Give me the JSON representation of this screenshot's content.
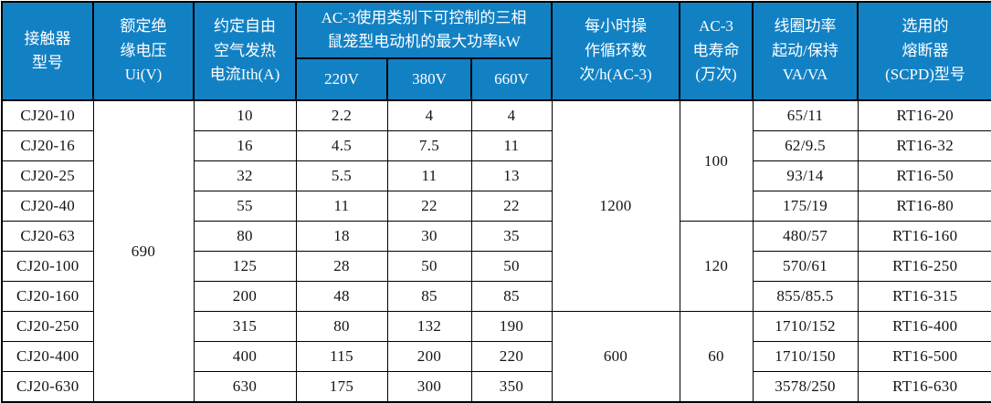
{
  "accent_color": "#1281c4",
  "header_text_color": "#ffffff",
  "body_text_color": "#141414",
  "table": {
    "header": {
      "top": [
        {
          "name": "model",
          "label": "接触器\n型号"
        },
        {
          "name": "insulation-voltage",
          "label": "额定绝\n缘电压\nUi(V)"
        },
        {
          "name": "thermal-current",
          "label": "约定自由\n空气发热\n电流Ith(A)"
        },
        {
          "name": "ac3-max-power-group",
          "label": "AC-3使用类别下可控制的三相\n鼠笼型电动机的最大功率kW",
          "sub": [
            "220V",
            "380V",
            "660V"
          ]
        },
        {
          "name": "cycles-per-hour",
          "label": "每小时操\n作循环数\n次/h(AC-3)"
        },
        {
          "name": "ac3-life",
          "label": "AC-3\n电寿命\n(万次)"
        },
        {
          "name": "coil-power",
          "label": "线圈功率\n起动/保持\nVA/VA"
        },
        {
          "name": "fuse",
          "label": "选用的\n熔断器\n(SCPD)型号"
        }
      ]
    },
    "rows": [
      [
        {
          "v": "CJ20-10"
        },
        {
          "v": "690",
          "rs": 10
        },
        {
          "v": "10"
        },
        {
          "v": "2.2"
        },
        {
          "v": "4"
        },
        {
          "v": "4"
        },
        {
          "v": "1200",
          "rs": 7
        },
        {
          "v": "100",
          "rs": 4
        },
        {
          "v": "65/11"
        },
        {
          "v": "RT16-20"
        }
      ],
      [
        {
          "v": "CJ20-16"
        },
        {
          "v": "16"
        },
        {
          "v": "4.5"
        },
        {
          "v": "7.5"
        },
        {
          "v": "11"
        },
        {
          "v": "62/9.5"
        },
        {
          "v": "RT16-32"
        }
      ],
      [
        {
          "v": "CJ20-25"
        },
        {
          "v": "32"
        },
        {
          "v": "5.5"
        },
        {
          "v": "11"
        },
        {
          "v": "13"
        },
        {
          "v": "93/14"
        },
        {
          "v": "RT16-50"
        }
      ],
      [
        {
          "v": "CJ20-40"
        },
        {
          "v": "55"
        },
        {
          "v": "11"
        },
        {
          "v": "22"
        },
        {
          "v": "22"
        },
        {
          "v": "175/19"
        },
        {
          "v": "RT16-80"
        }
      ],
      [
        {
          "v": "CJ20-63"
        },
        {
          "v": "80"
        },
        {
          "v": "18"
        },
        {
          "v": "30"
        },
        {
          "v": "35"
        },
        {
          "v": "120",
          "rs": 3
        },
        {
          "v": "480/57"
        },
        {
          "v": "RT16-160"
        }
      ],
      [
        {
          "v": "CJ20-100"
        },
        {
          "v": "125"
        },
        {
          "v": "28"
        },
        {
          "v": "50"
        },
        {
          "v": "50"
        },
        {
          "v": "570/61"
        },
        {
          "v": "RT16-250"
        }
      ],
      [
        {
          "v": "CJ20-160"
        },
        {
          "v": "200"
        },
        {
          "v": "48"
        },
        {
          "v": "85"
        },
        {
          "v": "85"
        },
        {
          "v": "855/85.5"
        },
        {
          "v": "RT16-315"
        }
      ],
      [
        {
          "v": "CJ20-250"
        },
        {
          "v": "315"
        },
        {
          "v": "80"
        },
        {
          "v": "132"
        },
        {
          "v": "190"
        },
        {
          "v": "600",
          "rs": 3
        },
        {
          "v": "60",
          "rs": 3
        },
        {
          "v": "1710/152"
        },
        {
          "v": "RT16-400"
        }
      ],
      [
        {
          "v": "CJ20-400"
        },
        {
          "v": "400"
        },
        {
          "v": "115"
        },
        {
          "v": "200"
        },
        {
          "v": "220"
        },
        {
          "v": "1710/150"
        },
        {
          "v": "RT16-500"
        }
      ],
      [
        {
          "v": "CJ20-630"
        },
        {
          "v": "630"
        },
        {
          "v": "175"
        },
        {
          "v": "300"
        },
        {
          "v": "350"
        },
        {
          "v": "3578/250"
        },
        {
          "v": "RT16-630"
        }
      ]
    ]
  },
  "chart_data": {
    "type": "table",
    "title": "CJ20 接触器技术参数表",
    "columns": [
      "接触器型号",
      "额定绝缘电压 Ui(V)",
      "约定自由空气发热电流 Ith(A)",
      "AC-3最大功率kW 220V",
      "AC-3最大功率kW 380V",
      "AC-3最大功率kW 660V",
      "每小时操作循环数 次/h(AC-3)",
      "AC-3电寿命(万次)",
      "线圈功率 起动/保持 VA/VA",
      "选用的熔断器(SCPD)型号"
    ],
    "data": [
      [
        "CJ20-10",
        690,
        10,
        2.2,
        4,
        4,
        1200,
        100,
        "65/11",
        "RT16-20"
      ],
      [
        "CJ20-16",
        690,
        16,
        4.5,
        7.5,
        11,
        1200,
        100,
        "62/9.5",
        "RT16-32"
      ],
      [
        "CJ20-25",
        690,
        32,
        5.5,
        11,
        13,
        1200,
        100,
        "93/14",
        "RT16-50"
      ],
      [
        "CJ20-40",
        690,
        55,
        11,
        22,
        22,
        1200,
        100,
        "175/19",
        "RT16-80"
      ],
      [
        "CJ20-63",
        690,
        80,
        18,
        30,
        35,
        1200,
        120,
        "480/57",
        "RT16-160"
      ],
      [
        "CJ20-100",
        690,
        125,
        28,
        50,
        50,
        1200,
        120,
        "570/61",
        "RT16-250"
      ],
      [
        "CJ20-160",
        690,
        200,
        48,
        85,
        85,
        1200,
        120,
        "855/85.5",
        "RT16-315"
      ],
      [
        "CJ20-250",
        690,
        315,
        80,
        132,
        190,
        600,
        60,
        "1710/152",
        "RT16-400"
      ],
      [
        "CJ20-400",
        690,
        400,
        115,
        200,
        220,
        600,
        60,
        "1710/150",
        "RT16-500"
      ],
      [
        "CJ20-630",
        690,
        630,
        175,
        300,
        350,
        600,
        60,
        "3578/250",
        "RT16-630"
      ]
    ]
  }
}
